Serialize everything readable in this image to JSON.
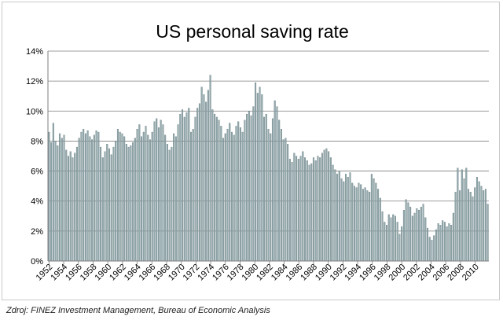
{
  "source_note": "Zdroj: FINEZ Investment Management, Bureau of Economic Analysis",
  "colors": {
    "bar_fill": "#94a9ad",
    "bar_edge": "#5b7478",
    "gridline": "#7f7f7f",
    "axis": "#7f7f7f",
    "text": "#000000"
  },
  "chart_data": {
    "type": "bar",
    "title": "US personal saving rate",
    "xlabel": "",
    "ylabel": "",
    "ylim": [
      0,
      14
    ],
    "y_ticks": [
      "0%",
      "2%",
      "4%",
      "6%",
      "8%",
      "10%",
      "12%",
      "14%"
    ],
    "x_tick_labels": [
      "1952",
      "1954",
      "1956",
      "1958",
      "1960",
      "1962",
      "1964",
      "1966",
      "1968",
      "1970",
      "1972",
      "1974",
      "1976",
      "1978",
      "1980",
      "1982",
      "1984",
      "1986",
      "1988",
      "1990",
      "1992",
      "1994",
      "1996",
      "1998",
      "2000",
      "2002",
      "2004",
      "2006",
      "2008",
      "2010"
    ],
    "grid": "horizontal",
    "legend": "none",
    "frequency": "quarterly",
    "start_year": 1952,
    "end_year": 2011,
    "series": [
      {
        "values": [
          8.6,
          7.9,
          9.2,
          8.0,
          7.7,
          8.5,
          8.2,
          8.4,
          7.4,
          7.0,
          7.3,
          6.9,
          7.2,
          7.6,
          8.2,
          8.6,
          8.8,
          8.5,
          8.7,
          8.3,
          8.1,
          8.4,
          8.7,
          8.6,
          7.6,
          6.9,
          7.3,
          7.8,
          7.5,
          7.1,
          7.6,
          8.0,
          8.8,
          8.6,
          8.5,
          8.3,
          7.8,
          7.6,
          7.7,
          7.9,
          8.2,
          8.8,
          9.1,
          8.3,
          8.6,
          9.0,
          8.4,
          8.1,
          8.6,
          9.3,
          9.5,
          8.9,
          9.4,
          9.1,
          8.4,
          7.8,
          7.4,
          7.6,
          8.5,
          8.3,
          9.1,
          9.8,
          10.1,
          9.6,
          9.9,
          10.2,
          8.6,
          8.8,
          9.6,
          10.2,
          10.5,
          11.6,
          11.1,
          10.6,
          11.4,
          12.4,
          10.1,
          9.8,
          9.6,
          9.4,
          9.0,
          8.2,
          8.5,
          8.8,
          9.2,
          8.6,
          8.4,
          9.0,
          9.3,
          8.9,
          8.6,
          9.4,
          9.8,
          10.0,
          9.7,
          10.3,
          11.9,
          11.2,
          11.6,
          11.1,
          9.6,
          9.8,
          8.8,
          8.5,
          9.5,
          10.7,
          10.3,
          9.4,
          8.8,
          8.1,
          8.2,
          7.8,
          6.8,
          6.6,
          7.2,
          7.0,
          6.8,
          7.0,
          7.3,
          6.9,
          6.7,
          6.4,
          6.5,
          6.9,
          6.7,
          7.0,
          6.9,
          7.2,
          7.4,
          7.5,
          7.3,
          6.9,
          6.4,
          6.1,
          5.8,
          6.0,
          5.5,
          5.3,
          5.8,
          5.6,
          5.9,
          5.2,
          5.0,
          4.9,
          5.2,
          5.1,
          4.8,
          4.9,
          4.7,
          4.6,
          5.8,
          5.5,
          5.2,
          4.8,
          4.2,
          3.3,
          2.6,
          2.4,
          3.1,
          2.9,
          3.1,
          3.0,
          2.6,
          1.8,
          2.3,
          3.4,
          4.1,
          3.9,
          3.6,
          3.0,
          3.2,
          3.5,
          3.4,
          3.6,
          3.8,
          2.9,
          2.2,
          1.6,
          1.4,
          1.7,
          2.1,
          2.5,
          2.4,
          2.7,
          2.6,
          2.3,
          2.5,
          2.4,
          3.2,
          4.6,
          6.2,
          4.7,
          6.1,
          5.5,
          6.2,
          4.8,
          4.6,
          4.3,
          4.9,
          5.6,
          5.3,
          5.0,
          4.7,
          4.8,
          3.8
        ]
      }
    ]
  }
}
